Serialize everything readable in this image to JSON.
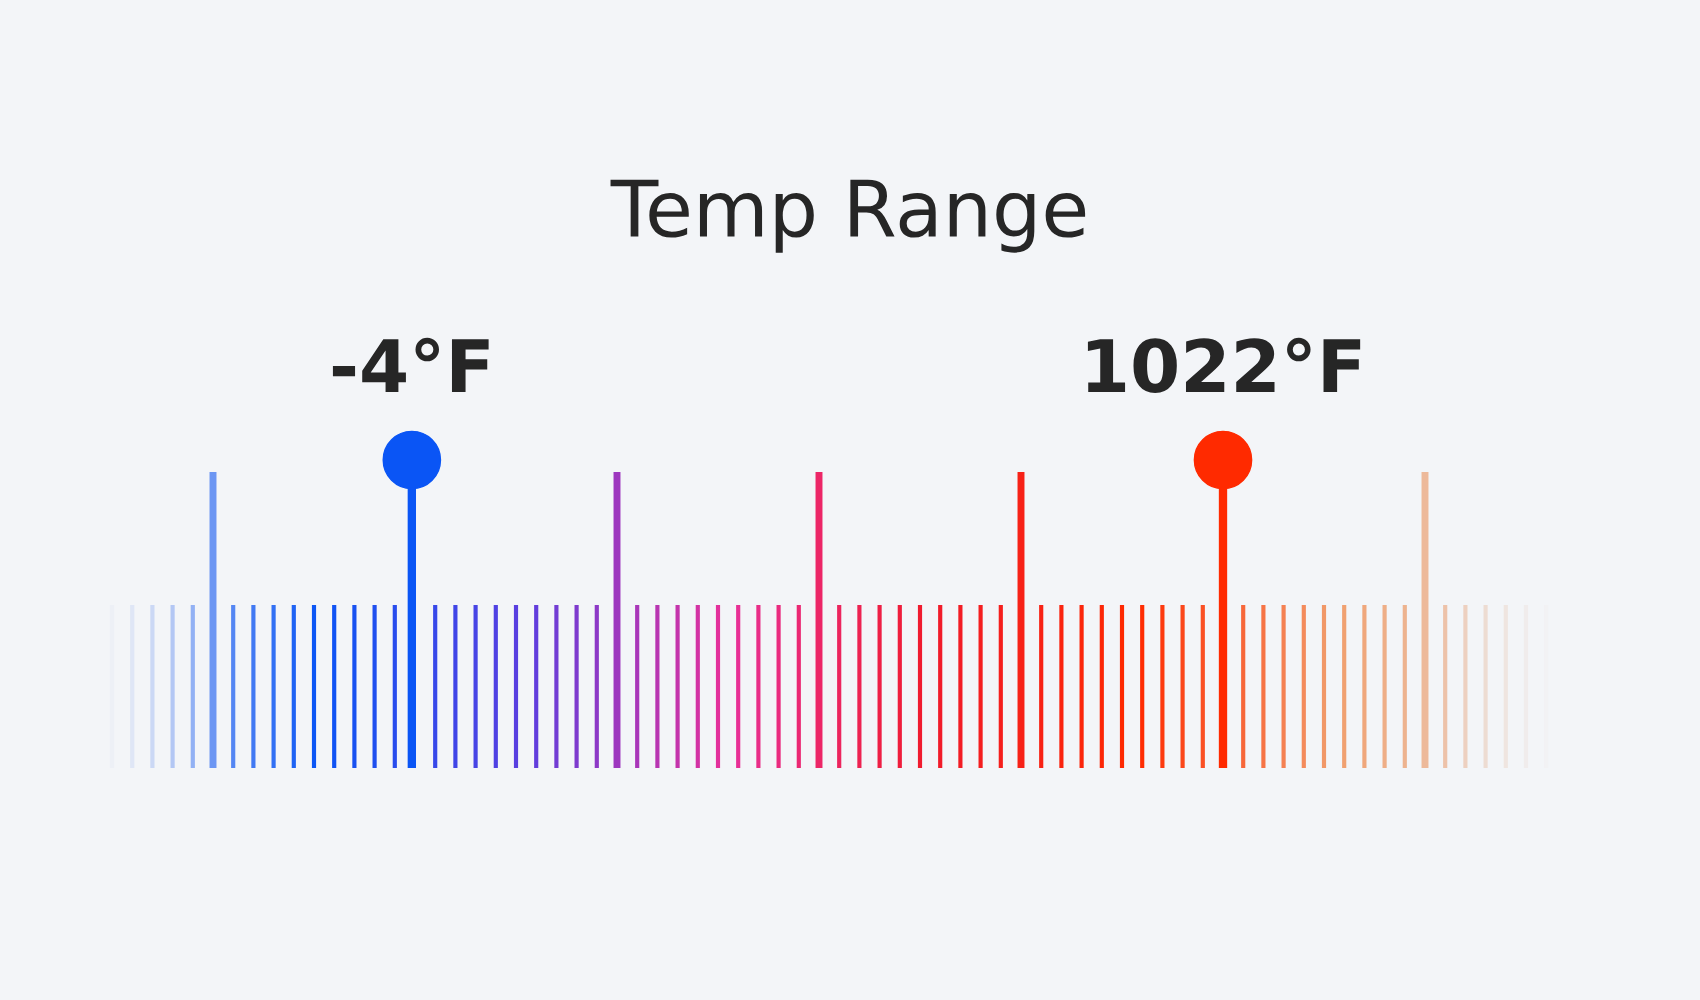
{
  "chart_data": {
    "type": "other",
    "title": "Temp Range",
    "values": [
      -4,
      1022
    ],
    "value_labels": [
      "-4°F",
      "1022°F"
    ],
    "colors": [
      "#0a55f5",
      "#ff2a00"
    ]
  }
}
